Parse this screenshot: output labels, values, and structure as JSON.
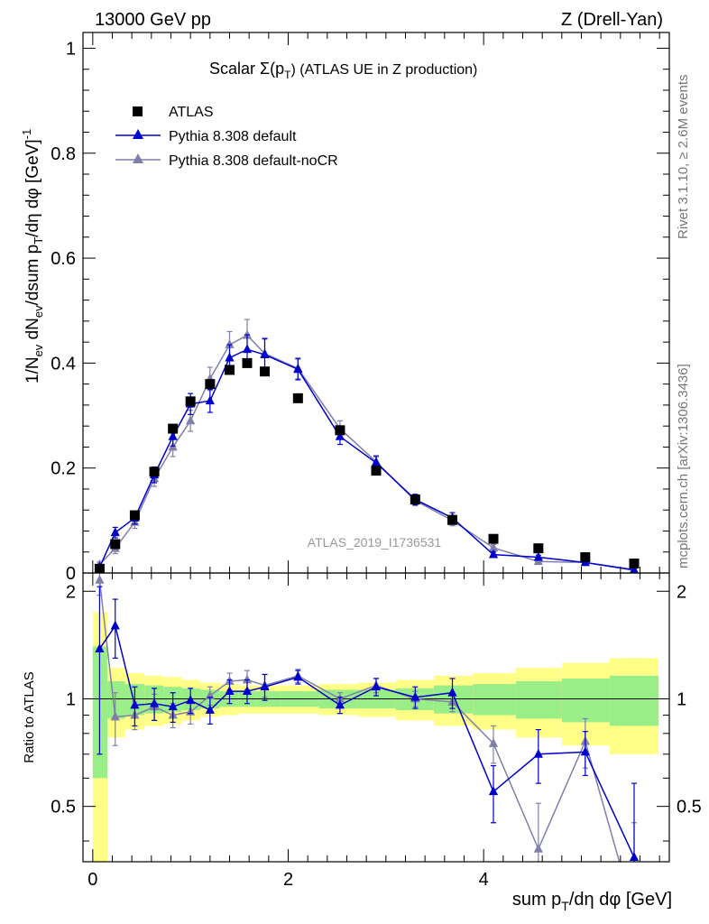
{
  "header": {
    "left": "13000 GeV pp",
    "right": "Z (Drell-Yan)"
  },
  "side_labels": {
    "rivet": "Rivet 3.1.10, ≥ 2.6M events",
    "mcplots": "mcplots.cern.ch [arXiv:1306.3436]"
  },
  "chart_data": {
    "type": "scatter",
    "title_main": "Scalar Σ(p",
    "title_sub": "T",
    "title_tail": ") (ATLAS UE in Z production)",
    "watermark": "ATLAS_2019_I1736531",
    "ylabel": "1/N_ev dN_ev/dsum p_T/dη dφ [GeV]^-1",
    "xlabel": "sum p_T/dη dφ [GeV]",
    "ratio_ylabel": "Ratio to ATLAS",
    "xlim": [
      -0.1,
      5.9
    ],
    "ylim": [
      0,
      1.03
    ],
    "ratio_ylim": [
      0.35,
      2.25
    ],
    "x_ticks": [
      "0",
      "2",
      "4"
    ],
    "y_ticks": [
      "0",
      "0.2",
      "0.4",
      "0.6",
      "0.8",
      "1"
    ],
    "ratio_ticks": [
      "0.5",
      "1",
      "2"
    ],
    "legend_position": "top-left",
    "x": [
      0.07,
      0.23,
      0.43,
      0.63,
      0.82,
      1.0,
      1.2,
      1.4,
      1.58,
      1.76,
      2.1,
      2.53,
      2.9,
      3.3,
      3.68,
      4.1,
      4.56,
      5.04,
      5.54
    ],
    "series": [
      {
        "name": "ATLAS",
        "color": "#000000",
        "marker": "square",
        "values": [
          0.008,
          0.055,
          0.11,
          0.193,
          0.275,
          0.327,
          0.36,
          0.387,
          0.4,
          0.384,
          0.333,
          0.272,
          0.195,
          0.14,
          0.101,
          0.065,
          0.047,
          0.03,
          0.018
        ],
        "band_inner": [
          0.4,
          0.12,
          0.1,
          0.09,
          0.08,
          0.07,
          0.06,
          0.05,
          0.05,
          0.05,
          0.05,
          0.06,
          0.06,
          0.07,
          0.09,
          0.1,
          0.12,
          0.14,
          0.16
        ],
        "band_outer": [
          0.75,
          0.22,
          0.18,
          0.16,
          0.15,
          0.13,
          0.11,
          0.1,
          0.09,
          0.09,
          0.09,
          0.1,
          0.11,
          0.13,
          0.16,
          0.18,
          0.22,
          0.26,
          0.3
        ]
      },
      {
        "name": "Pythia 8.308 default",
        "color": "#0000cc",
        "marker": "triangle",
        "values": [
          0.011,
          0.077,
          0.105,
          0.187,
          0.26,
          0.322,
          0.328,
          0.41,
          0.426,
          0.416,
          0.388,
          0.26,
          0.21,
          0.14,
          0.105,
          0.035,
          0.03,
          0.02,
          0.006
        ],
        "errors": [
          0.004,
          0.01,
          0.012,
          0.015,
          0.018,
          0.02,
          0.022,
          0.025,
          0.028,
          0.03,
          0.02,
          0.015,
          0.012,
          0.01,
          0.01,
          0.005,
          0.004,
          0.003,
          0.003
        ],
        "ratio": [
          1.38,
          1.6,
          0.96,
          0.97,
          0.95,
          0.99,
          0.93,
          1.05,
          1.05,
          1.08,
          1.15,
          0.96,
          1.08,
          1.01,
          1.04,
          0.55,
          0.7,
          0.71,
          0.36
        ],
        "ratio_errors": [
          0.68,
          0.3,
          0.12,
          0.1,
          0.09,
          0.08,
          0.08,
          0.08,
          0.08,
          0.09,
          0.05,
          0.05,
          0.06,
          0.07,
          0.1,
          0.1,
          0.12,
          0.1,
          0.22
        ]
      },
      {
        "name": "Pythia 8.308 default-noCR",
        "color": "#7f7faa",
        "marker": "triangle",
        "values": [
          0.016,
          0.047,
          0.097,
          0.18,
          0.24,
          0.29,
          0.37,
          0.435,
          0.453,
          0.418,
          0.39,
          0.275,
          0.212,
          0.138,
          0.1,
          0.048,
          0.022,
          0.02,
          0.005
        ],
        "errors": [
          0.005,
          0.01,
          0.012,
          0.015,
          0.018,
          0.02,
          0.022,
          0.025,
          0.03,
          0.03,
          0.02,
          0.015,
          0.012,
          0.01,
          0.01,
          0.006,
          0.004,
          0.003,
          0.003
        ],
        "ratio": [
          2.15,
          0.89,
          0.9,
          0.95,
          0.9,
          0.92,
          1.02,
          1.12,
          1.13,
          1.09,
          1.16,
          1.0,
          1.09,
          1.0,
          0.98,
          0.75,
          0.38,
          0.76,
          0.25
        ],
        "ratio_errors": [
          0.2,
          0.15,
          0.08,
          0.08,
          0.07,
          0.07,
          0.06,
          0.06,
          0.07,
          0.08,
          0.05,
          0.04,
          0.05,
          0.05,
          0.06,
          0.09,
          0.13,
          0.12,
          0.2
        ]
      }
    ]
  }
}
